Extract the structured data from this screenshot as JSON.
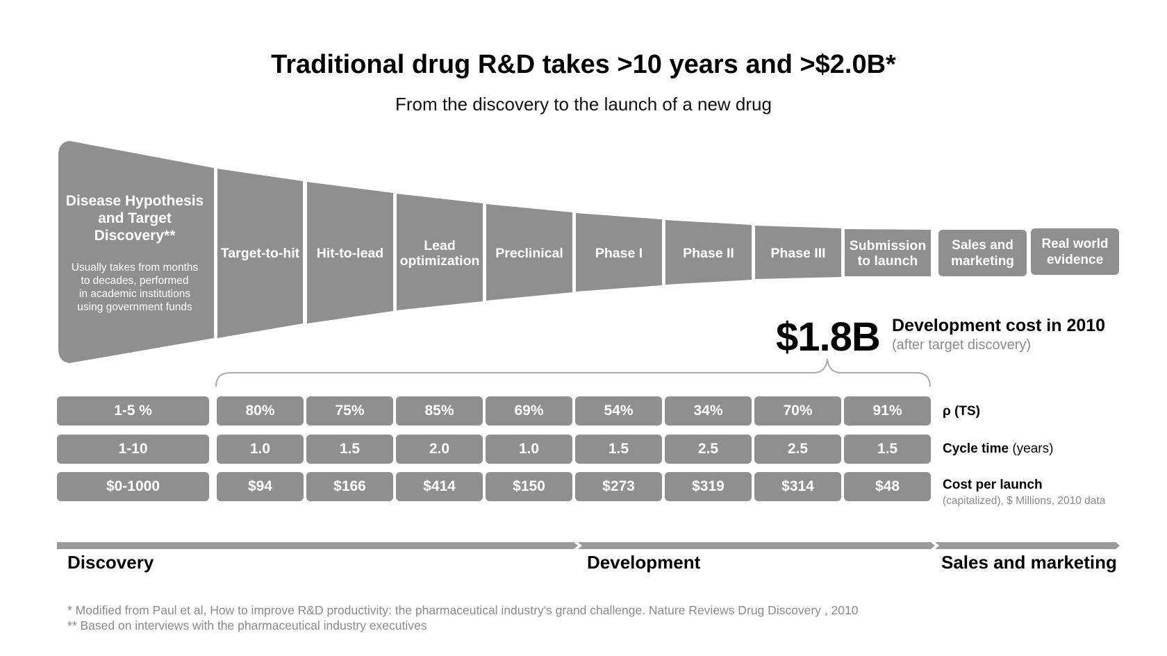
{
  "title": "Traditional drug R&D takes >10 years and >$2.0B*",
  "subtitle": "From the discovery to the launch of a new drug",
  "discovery_stage": {
    "heading": "Disease Hypothesis\nand Target\nDiscovery**",
    "description": "Usually takes from months\nto decades, performed\nin academic institutions\nusing government funds"
  },
  "funnel_stages": [
    "Target-to-hit",
    "Hit-to-lead",
    "Lead\noptimization",
    "Preclinical",
    "Phase I",
    "Phase II",
    "Phase III",
    "Submission\nto launch"
  ],
  "post_stages": [
    "Sales and\nmarketing",
    "Real world\nevidence"
  ],
  "cost_callout": {
    "amount": "$1.8B",
    "title": "Development cost in 2010",
    "subtitle": "(after target discovery)"
  },
  "table": {
    "rows": [
      {
        "label_bold": "ρ (TS)",
        "label_rest": "",
        "discovery": "1-5 %",
        "values": [
          "80%",
          "75%",
          "85%",
          "69%",
          "54%",
          "34%",
          "70%",
          "91%"
        ]
      },
      {
        "label_bold": "Cycle time",
        "label_rest": " (years)",
        "discovery": "1-10",
        "values": [
          "1.0",
          "1.5",
          "2.0",
          "1.0",
          "1.5",
          "2.5",
          "2.5",
          "1.5"
        ]
      },
      {
        "label_bold": "Cost per launch",
        "label_rest": "",
        "discovery": "$0-1000",
        "values": [
          "$94",
          "$166",
          "$414",
          "$150",
          "$273",
          "$319",
          "$314",
          "$48"
        ]
      }
    ],
    "cost_note": "(capitalized), $ Millions, 2010 data"
  },
  "phases": [
    "Discovery",
    "Development",
    "Sales and marketing"
  ],
  "footnotes": [
    "* Modified from Paul et al, How to improve R&D productivity: the pharmaceutical industry's grand challenge. Nature Reviews Drug Discovery , 2010",
    "** Based on interviews with the pharmaceutical industry executives"
  ],
  "colors": {
    "block": "#8f8f8f",
    "phase_bar": "#9a9a9a",
    "brace": "#aaaaaa",
    "muted_text": "#8a8a8a"
  }
}
